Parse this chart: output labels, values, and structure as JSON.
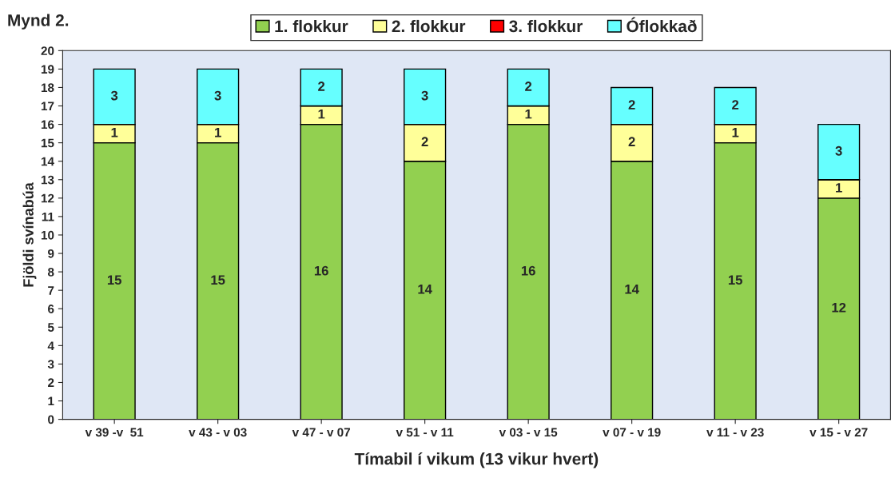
{
  "chart_data": {
    "type": "bar",
    "title": "Mynd 2.",
    "xlabel": "Tímabil í vikum (13 vikur hvert)",
    "ylabel": "Fjöldi svínabúa",
    "categories": [
      "v 39 -v  51",
      "v 43 - v 03",
      "v 47 - v 07",
      "v 51 - v 11",
      "v 03 - v 15",
      "v 07 - v 19",
      "v 11 - v 23",
      "v 15 - v 27"
    ],
    "stacked": true,
    "ylim": [
      0,
      20
    ],
    "yticks": [
      0,
      1,
      2,
      3,
      4,
      5,
      6,
      7,
      8,
      9,
      10,
      11,
      12,
      13,
      14,
      15,
      16,
      17,
      18,
      19,
      20
    ],
    "grid": false,
    "legend": "top",
    "series": [
      {
        "name": "1. flokkur",
        "color": "#92d050",
        "values": [
          15,
          15,
          16,
          14,
          16,
          14,
          15,
          12
        ],
        "value_labels": [
          "15",
          "15",
          "16",
          "14",
          "16",
          "14",
          "15",
          "12"
        ]
      },
      {
        "name": "2. flokkur",
        "color": "#ffff99",
        "values": [
          1,
          1,
          1,
          2,
          1,
          2,
          1,
          1
        ],
        "value_labels": [
          "1",
          "1",
          "1",
          "2",
          "1",
          "2",
          "1",
          "1"
        ]
      },
      {
        "name": "3. flokkur",
        "color": "#ff0000",
        "values": [
          0,
          0,
          0,
          0,
          0,
          0,
          0,
          0
        ],
        "value_labels": [
          null,
          null,
          null,
          null,
          null,
          null,
          null,
          null
        ]
      },
      {
        "name": "Óflokkað",
        "color": "#66ffff",
        "values": [
          3,
          3,
          2,
          3,
          2,
          2,
          2,
          3
        ],
        "value_labels": [
          "3",
          "3",
          "2",
          "3",
          "2",
          "2",
          "2",
          "3"
        ]
      }
    ]
  }
}
